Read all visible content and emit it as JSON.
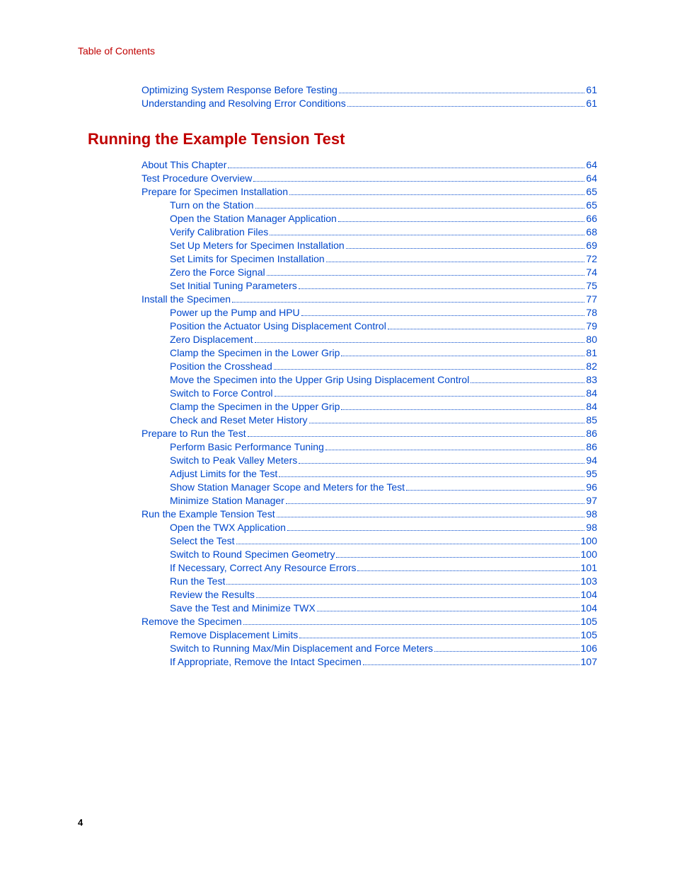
{
  "colors": {
    "link": "#0047cc",
    "heading": "#c00000",
    "background": "#ffffff",
    "text": "#000000"
  },
  "typography": {
    "body_fontsize_pt": 11,
    "heading_fontsize_pt": 17,
    "font_family": "Arial"
  },
  "header": {
    "title": "Table of Contents"
  },
  "pre_section_items": [
    {
      "label": "Optimizing System Response Before Testing",
      "page": "61",
      "indent": 0
    },
    {
      "label": "Understanding and Resolving Error Conditions",
      "page": "61",
      "indent": 0
    }
  ],
  "section": {
    "heading": "Running the Example Tension Test",
    "items": [
      {
        "label": "About This Chapter",
        "page": "64",
        "indent": 0
      },
      {
        "label": "Test Procedure Overview",
        "page": "64",
        "indent": 0
      },
      {
        "label": "Prepare for Specimen Installation",
        "page": "65",
        "indent": 0
      },
      {
        "label": "Turn on the Station",
        "page": "65",
        "indent": 1
      },
      {
        "label": "Open the Station Manager Application",
        "page": "66",
        "indent": 1
      },
      {
        "label": "Verify Calibration Files",
        "page": "68",
        "indent": 1
      },
      {
        "label": "Set Up Meters for Specimen Installation",
        "page": "69",
        "indent": 1
      },
      {
        "label": "Set Limits for Specimen Installation",
        "page": "72",
        "indent": 1
      },
      {
        "label": "Zero the Force Signal",
        "page": "74",
        "indent": 1
      },
      {
        "label": "Set Initial Tuning Parameters",
        "page": "75",
        "indent": 1
      },
      {
        "label": "Install the Specimen",
        "page": "77",
        "indent": 0
      },
      {
        "label": "Power up the Pump and HPU",
        "page": "78",
        "indent": 1
      },
      {
        "label": "Position the Actuator Using Displacement Control",
        "page": "79",
        "indent": 1
      },
      {
        "label": "Zero Displacement",
        "page": "80",
        "indent": 1
      },
      {
        "label": "Clamp the Specimen in the Lower Grip",
        "page": "81",
        "indent": 1
      },
      {
        "label": "Position the Crosshead",
        "page": "82",
        "indent": 1
      },
      {
        "label": "Move the Specimen into the Upper Grip Using Displacement Control",
        "page": "83",
        "indent": 1
      },
      {
        "label": "Switch to Force Control",
        "page": "84",
        "indent": 1
      },
      {
        "label": "Clamp the Specimen in the Upper Grip",
        "page": "84",
        "indent": 1
      },
      {
        "label": "Check and Reset Meter History",
        "page": "85",
        "indent": 1
      },
      {
        "label": "Prepare to Run the Test",
        "page": "86",
        "indent": 0
      },
      {
        "label": "Perform Basic Performance Tuning",
        "page": "86",
        "indent": 1
      },
      {
        "label": "Switch to Peak Valley Meters",
        "page": "94",
        "indent": 1
      },
      {
        "label": "Adjust Limits for the Test",
        "page": "95",
        "indent": 1
      },
      {
        "label": "Show Station Manager Scope and Meters for the Test",
        "page": "96",
        "indent": 1
      },
      {
        "label": "Minimize Station Manager",
        "page": "97",
        "indent": 1
      },
      {
        "label": "Run the Example Tension Test",
        "page": "98",
        "indent": 0
      },
      {
        "label": "Open the TWX Application",
        "page": "98",
        "indent": 1
      },
      {
        "label": "Select the Test",
        "page": "100",
        "indent": 1
      },
      {
        "label": "Switch to Round Specimen Geometry",
        "page": "100",
        "indent": 1
      },
      {
        "label": "If Necessary, Correct Any Resource Errors",
        "page": "101",
        "indent": 1
      },
      {
        "label": "Run the Test",
        "page": "103",
        "indent": 1
      },
      {
        "label": "Review the Results",
        "page": "104",
        "indent": 1
      },
      {
        "label": "Save the Test and Minimize TWX",
        "page": "104",
        "indent": 1
      },
      {
        "label": "Remove the Specimen",
        "page": "105",
        "indent": 0
      },
      {
        "label": "Remove Displacement Limits",
        "page": "105",
        "indent": 1
      },
      {
        "label": "Switch to Running Max/Min Displacement and Force Meters",
        "page": "106",
        "indent": 1
      },
      {
        "label": "If Appropriate, Remove the Intact Specimen",
        "page": "107",
        "indent": 1
      }
    ]
  },
  "footer": {
    "page_number": "4"
  }
}
